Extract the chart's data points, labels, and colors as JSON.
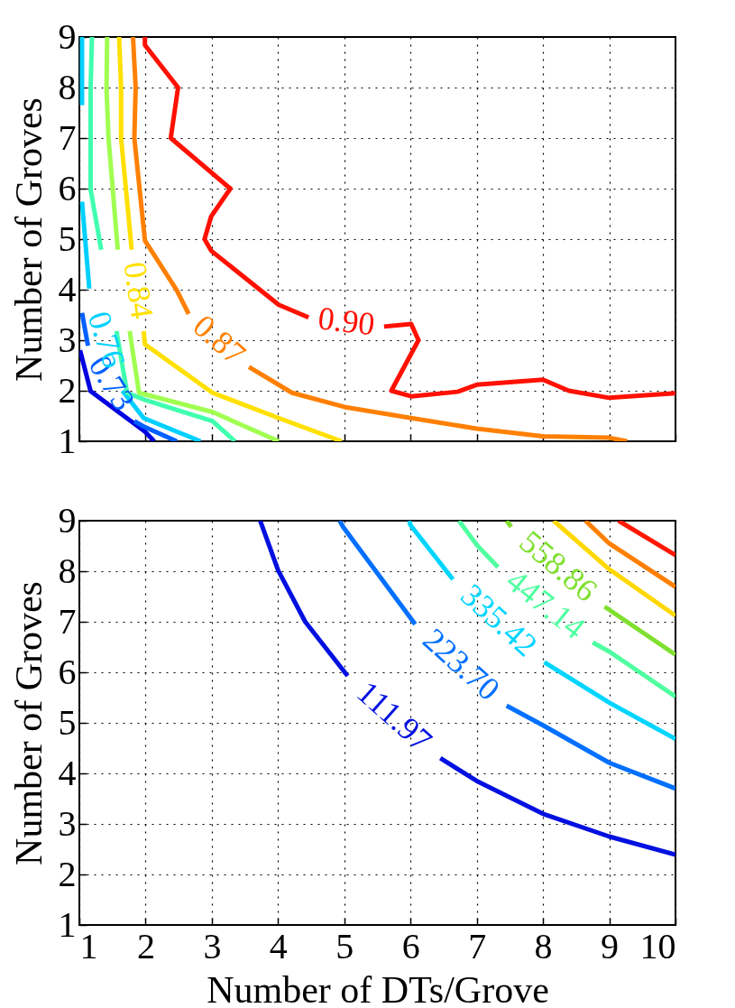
{
  "chart_data": [
    {
      "type": "line",
      "ylabel": "Number of Groves",
      "xlim": [
        1,
        10
      ],
      "xticks": [
        1,
        2,
        3,
        4,
        5,
        6,
        7,
        8,
        9,
        10
      ],
      "ylim": [
        1,
        9
      ],
      "yticks": [
        1,
        2,
        3,
        4,
        5,
        6,
        7,
        8,
        9
      ],
      "grid": true,
      "tick_labels": "y",
      "line_style": "solid",
      "marker": "none",
      "series": [
        {
          "color": "#0000e0",
          "x": [
            1.01,
            1.17,
            1.99,
            2.13
          ],
          "values": [
            2.8,
            1.99,
            1.19,
            1.0
          ]
        },
        {
          "name": "0.73",
          "color": "#0060ff",
          "x": [
            1.04,
            1.13,
            1.5,
            1.83,
            1.99,
            2.47
          ],
          "values": [
            3.54,
            2.89,
            null,
            1.4,
            1.28,
            1.0
          ]
        },
        {
          "name": "0.76",
          "color": "#00d0ff",
          "x": [
            1.04,
            1.15,
            1.4,
            1.65,
            1.97,
            2.83
          ],
          "values": [
            5.74,
            4.02,
            null,
            2.0,
            1.46,
            1.0
          ]
        },
        {
          "color": "#00d0ff",
          "x": [
            1.04,
            1.04
          ],
          "values": [
            9,
            7.65
          ]
        },
        {
          "color": "#40ffb0",
          "x": [
            1.19,
            1.17,
            1.17,
            1.33,
            1.45,
            1.56,
            1.72,
            1.99,
            3.01,
            3.35
          ],
          "values": [
            9,
            8,
            5.98,
            4.79,
            null,
            3.18,
            1.96,
            1.82,
            1.4,
            1.0
          ]
        },
        {
          "color": "#a0ff50",
          "x": [
            1.42,
            1.41,
            1.44,
            1.58,
            1.67,
            1.76,
            1.9,
            3.01,
            4.01
          ],
          "values": [
            9,
            8,
            7,
            4.79,
            null,
            3.18,
            1.96,
            1.58,
            1.0
          ]
        },
        {
          "name": "0.84",
          "color": "#ffe000",
          "x": [
            1.6,
            1.63,
            1.63,
            1.79,
            1.88,
            1.97,
            1.99,
            3.01,
            4.01,
            4.96
          ],
          "values": [
            9,
            8,
            7,
            4.79,
            null,
            3.18,
            2.92,
            1.96,
            1.46,
            1.0
          ]
        },
        {
          "name": "0.87",
          "color": "#ff8000",
          "x": [
            1.81,
            1.85,
            1.83,
            1.99,
            2.47,
            2.65,
            3.1,
            3.56,
            4.21,
            5.0,
            6.01,
            7.0,
            8.0,
            9.0,
            9.27
          ],
          "values": [
            9,
            8,
            7,
            4.97,
            3.99,
            3.52,
            null,
            2.47,
            1.96,
            1.68,
            1.46,
            1.25,
            1.1,
            1.07,
            1.0
          ]
        },
        {
          "name": "0.90",
          "color": "#ff1000",
          "x": [
            1.99,
            1.99,
            2.49,
            2.38,
            3.28,
            2.99,
            2.89,
            2.99,
            4.01,
            4.46,
            5.0,
            5.6,
            6.01,
            6.12,
            5.71,
            6.01,
            6.71,
            7.0,
            8.0,
            8.39,
            9.0,
            10
          ],
          "values": [
            9,
            8.84,
            8,
            7,
            6,
            5.45,
            5,
            4.77,
            3.7,
            3.45,
            null,
            3.27,
            3.32,
            3.0,
            2.0,
            1.89,
            1.98,
            2.12,
            2.22,
            2.0,
            1.86,
            1.95
          ]
        }
      ]
    },
    {
      "type": "line",
      "xlabel": "Number of DTs/Grove",
      "ylabel": "Number of Groves",
      "xlim": [
        1,
        10
      ],
      "xticks": [
        1,
        2,
        3,
        4,
        5,
        6,
        7,
        8,
        9,
        10
      ],
      "ylim": [
        1,
        9
      ],
      "yticks": [
        1,
        2,
        3,
        4,
        5,
        6,
        7,
        8,
        9
      ],
      "grid": true,
      "line_style": "solid",
      "marker": "none",
      "series": [
        {
          "name": "111.97",
          "color": "#0010e0",
          "x": [
            3.73,
            4.0,
            4.41,
            5.05,
            5.7,
            6.45,
            7.0,
            8.0,
            9.0,
            10
          ],
          "values": [
            9,
            8.02,
            7,
            5.93,
            null,
            4.3,
            3.85,
            3.2,
            2.75,
            2.39
          ]
        },
        {
          "name": "223.70",
          "color": "#0070ff",
          "x": [
            4.93,
            4.98,
            6.07,
            6.7,
            7.45,
            8.0,
            9.0,
            10
          ],
          "values": [
            9,
            8.88,
            6.95,
            null,
            5.34,
            4.95,
            4.21,
            3.7
          ]
        },
        {
          "name": "335.42",
          "color": "#00d5ff",
          "x": [
            5.98,
            6.0,
            6.64,
            7.3,
            8.02,
            9.0,
            10
          ],
          "values": [
            9,
            8.91,
            7.84,
            null,
            6.2,
            5.4,
            4.68
          ]
        },
        {
          "name": "447.14",
          "color": "#50ffa0",
          "x": [
            6.73,
            7.0,
            7.32,
            8.0,
            8.75,
            9.0,
            10
          ],
          "values": [
            9,
            8.52,
            8.08,
            null,
            6.59,
            6.41,
            5.52
          ]
        },
        {
          "name": "558.86",
          "color": "#80e030",
          "x": [
            7.45,
            7.52,
            8.2,
            8.93,
            10
          ],
          "values": [
            9,
            8.88,
            null,
            7.3,
            6.35
          ]
        },
        {
          "color": "#ffd800",
          "x": [
            8.16,
            9.0,
            10
          ],
          "values": [
            9,
            8.04,
            7.12
          ]
        },
        {
          "color": "#ff8000",
          "x": [
            8.64,
            9.0,
            10
          ],
          "values": [
            9,
            8.55,
            7.69
          ]
        },
        {
          "color": "#ff1800",
          "x": [
            9.14,
            10
          ],
          "values": [
            9,
            8.32
          ]
        }
      ]
    }
  ]
}
